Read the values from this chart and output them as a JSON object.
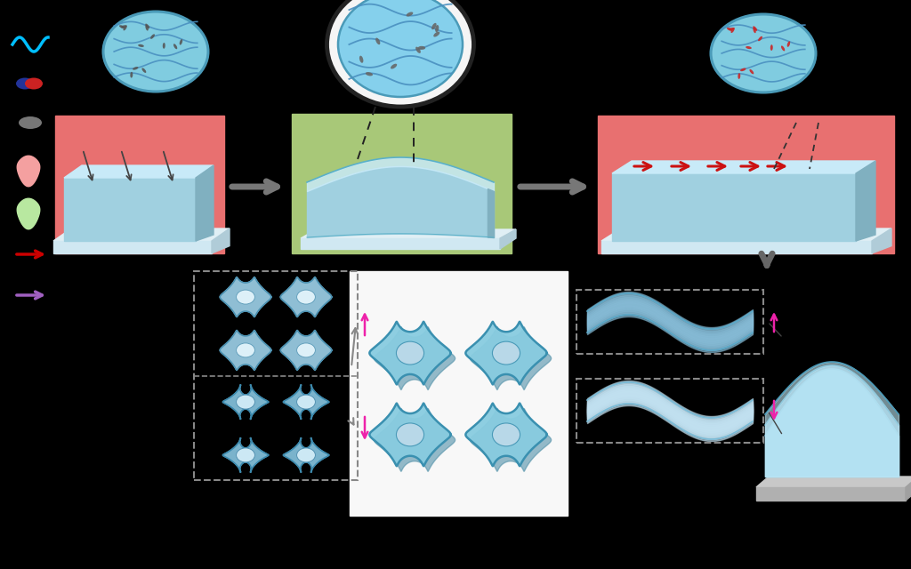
{
  "bg_color": "#000000",
  "panel1_bg": "#e87070",
  "panel2_bg": "#a8c878",
  "panel3_bg": "#e87070",
  "beam_front": "#a0d0e0",
  "beam_top": "#c8eaf8",
  "beam_right": "#80b0c0",
  "beam_base_top": "#e0eff5",
  "beam_base_front": "#c0d8e8",
  "beam_base_right": "#a0c0d0",
  "ell_fill": "#80cce0",
  "ell_edge": "#4a9ab8",
  "wave_color": "#4a90c0",
  "particle_color": "#555555",
  "particle_red": "#cc2222",
  "arrow_gray": "#888888",
  "arrow_red": "#cc0000",
  "arrow_pink": "#ee44cc",
  "wavy_cyan": "#00bfff"
}
